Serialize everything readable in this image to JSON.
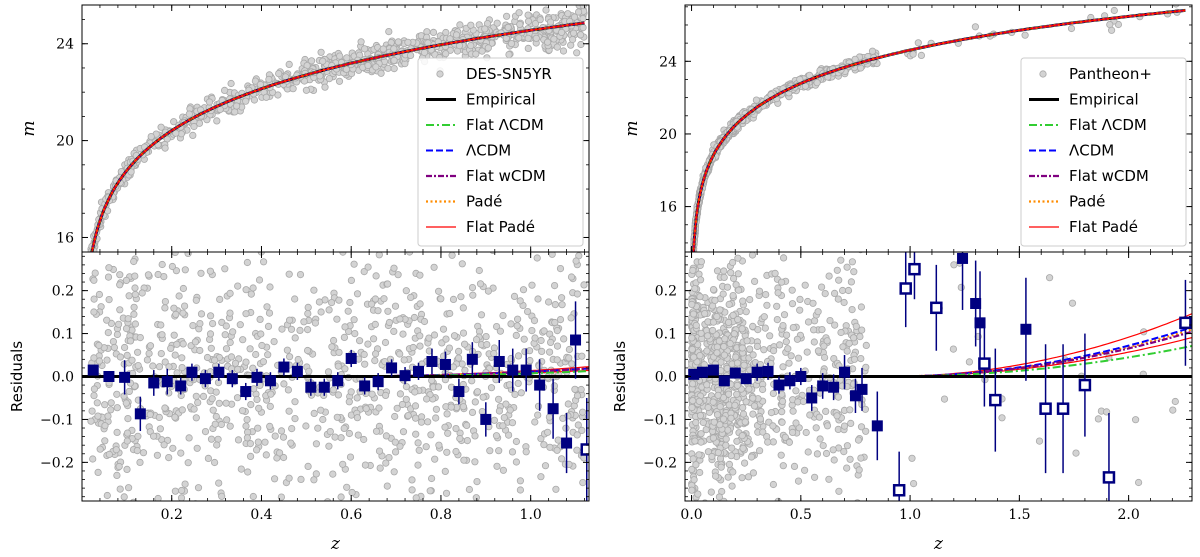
{
  "chart_data": [
    {
      "id": "des",
      "type": "scatter",
      "xlabel": "z",
      "top": {
        "ylabel": "m",
        "ylim": [
          15.4,
          25.6
        ],
        "yticks": [
          16,
          20,
          24
        ],
        "ytick_labels": [
          "16",
          "20",
          "24"
        ]
      },
      "bottom": {
        "ylabel": "Residuals",
        "ylim": [
          -0.29,
          0.29
        ],
        "yticks": [
          -0.2,
          -0.1,
          0.0,
          0.1,
          0.2
        ],
        "ytick_labels": [
          "−0.2",
          "−0.1",
          "0.0",
          "0.1",
          "0.2"
        ]
      },
      "xlim": [
        0.0,
        1.13
      ],
      "xticks": [
        0.2,
        0.4,
        0.6,
        0.8,
        1.0
      ],
      "xtick_labels": [
        "0.2",
        "0.4",
        "0.6",
        "0.8",
        "1.0"
      ],
      "legend": {
        "placement": "lower-right",
        "entries": [
          "DES-SN5YR",
          "Empirical",
          "Flat ΛCDM",
          "ΛCDM",
          "Flat wCDM",
          "Padé",
          "Flat Padé"
        ]
      },
      "binned_residuals": [
        {
          "z": 0.025,
          "r": 0.015,
          "err": 0.0
        },
        {
          "z": 0.06,
          "r": 0.0,
          "err": 0.0
        },
        {
          "z": 0.095,
          "r": -0.002,
          "err": 0.04
        },
        {
          "z": 0.13,
          "r": -0.087,
          "err": 0.04
        },
        {
          "z": 0.16,
          "r": -0.015,
          "err": 0.03
        },
        {
          "z": 0.19,
          "r": -0.012,
          "err": 0.03
        },
        {
          "z": 0.22,
          "r": -0.022,
          "err": 0.02
        },
        {
          "z": 0.245,
          "r": 0.01,
          "err": 0.02
        },
        {
          "z": 0.275,
          "r": -0.005,
          "err": 0.02
        },
        {
          "z": 0.305,
          "r": 0.01,
          "err": 0.02
        },
        {
          "z": 0.335,
          "r": -0.005,
          "err": 0.02
        },
        {
          "z": 0.365,
          "r": -0.035,
          "err": 0.02
        },
        {
          "z": 0.39,
          "r": -0.002,
          "err": 0.02
        },
        {
          "z": 0.42,
          "r": -0.01,
          "err": 0.02
        },
        {
          "z": 0.45,
          "r": 0.022,
          "err": 0.02
        },
        {
          "z": 0.48,
          "r": 0.012,
          "err": 0.02
        },
        {
          "z": 0.51,
          "r": -0.025,
          "err": 0.02
        },
        {
          "z": 0.54,
          "r": -0.025,
          "err": 0.02
        },
        {
          "z": 0.57,
          "r": -0.01,
          "err": 0.02
        },
        {
          "z": 0.6,
          "r": 0.042,
          "err": 0.02
        },
        {
          "z": 0.63,
          "r": -0.022,
          "err": 0.02
        },
        {
          "z": 0.66,
          "r": -0.012,
          "err": 0.02
        },
        {
          "z": 0.69,
          "r": 0.02,
          "err": 0.02
        },
        {
          "z": 0.72,
          "r": 0.002,
          "err": 0.02
        },
        {
          "z": 0.75,
          "r": 0.012,
          "err": 0.02
        },
        {
          "z": 0.78,
          "r": 0.035,
          "err": 0.03
        },
        {
          "z": 0.81,
          "r": 0.028,
          "err": 0.03
        },
        {
          "z": 0.84,
          "r": -0.035,
          "err": 0.03
        },
        {
          "z": 0.87,
          "r": 0.04,
          "err": 0.04
        },
        {
          "z": 0.9,
          "r": -0.1,
          "err": 0.04
        },
        {
          "z": 0.93,
          "r": 0.035,
          "err": 0.05
        },
        {
          "z": 0.96,
          "r": 0.015,
          "err": 0.05
        },
        {
          "z": 0.99,
          "r": 0.015,
          "err": 0.05
        },
        {
          "z": 1.02,
          "r": -0.02,
          "err": 0.06
        },
        {
          "z": 1.05,
          "r": -0.075,
          "err": 0.07
        },
        {
          "z": 1.08,
          "r": -0.155,
          "err": 0.07
        },
        {
          "z": 1.1,
          "r": 0.085,
          "err": 0.09
        },
        {
          "z": 1.125,
          "r": -0.17,
          "err": 0.12,
          "open": true
        }
      ],
      "models": {
        "end_offsets": {
          "flat_lcdm": 0.012,
          "lcdm": 0.018,
          "flat_wcdm": 0.018,
          "pade": 0.018,
          "flat_pade": 0.022
        },
        "start_z": 0.55
      }
    },
    {
      "id": "pantheon",
      "type": "scatter",
      "xlabel": "z",
      "top": {
        "ylabel": "m",
        "ylim": [
          13.5,
          27.1
        ],
        "yticks": [
          16,
          20,
          24
        ],
        "ytick_labels": [
          "16",
          "20",
          "24"
        ]
      },
      "bottom": {
        "ylabel": "Residuals",
        "ylim": [
          -0.29,
          0.29
        ],
        "yticks": [
          -0.2,
          -0.1,
          0.0,
          0.1,
          0.2
        ],
        "ytick_labels": [
          "−0.2",
          "−0.1",
          "0.0",
          "0.1",
          "0.2"
        ]
      },
      "xlim": [
        -0.03,
        2.29
      ],
      "xticks": [
        0.0,
        0.5,
        1.0,
        1.5,
        2.0
      ],
      "xtick_labels": [
        "0.0",
        "0.5",
        "1.0",
        "1.5",
        "2.0"
      ],
      "legend": {
        "placement": "lower-right",
        "entries": [
          "Pantheon+",
          "Empirical",
          "Flat ΛCDM",
          "ΛCDM",
          "Flat wCDM",
          "Padé",
          "Flat Padé"
        ]
      },
      "binned_residuals": [
        {
          "z": 0.01,
          "r": 0.005,
          "err": 0.01
        },
        {
          "z": 0.05,
          "r": 0.01,
          "err": 0.01
        },
        {
          "z": 0.1,
          "r": 0.015,
          "err": 0.01
        },
        {
          "z": 0.15,
          "r": -0.01,
          "err": 0.01
        },
        {
          "z": 0.2,
          "r": 0.008,
          "err": 0.01
        },
        {
          "z": 0.25,
          "r": -0.005,
          "err": 0.01
        },
        {
          "z": 0.3,
          "r": 0.01,
          "err": 0.02
        },
        {
          "z": 0.35,
          "r": 0.012,
          "err": 0.02
        },
        {
          "z": 0.4,
          "r": -0.02,
          "err": 0.02
        },
        {
          "z": 0.45,
          "r": -0.01,
          "err": 0.02
        },
        {
          "z": 0.5,
          "r": 0.0,
          "err": 0.02
        },
        {
          "z": 0.55,
          "r": -0.05,
          "err": 0.03
        },
        {
          "z": 0.6,
          "r": -0.022,
          "err": 0.03
        },
        {
          "z": 0.65,
          "r": -0.025,
          "err": 0.03
        },
        {
          "z": 0.7,
          "r": 0.01,
          "err": 0.04
        },
        {
          "z": 0.75,
          "r": -0.045,
          "err": 0.04
        },
        {
          "z": 0.78,
          "r": -0.03,
          "err": 0.05
        },
        {
          "z": 0.85,
          "r": -0.115,
          "err": 0.08
        },
        {
          "z": 0.95,
          "r": -0.265,
          "err": 0.09,
          "open": true
        },
        {
          "z": 0.98,
          "r": 0.205,
          "err": 0.09,
          "open": true
        },
        {
          "z": 1.02,
          "r": 0.25,
          "err": 0.07,
          "open": true
        },
        {
          "z": 1.12,
          "r": 0.16,
          "err": 0.1,
          "open": true
        },
        {
          "z": 1.24,
          "r": 0.275,
          "err": 0.12
        },
        {
          "z": 1.3,
          "r": 0.17,
          "err": 0.1
        },
        {
          "z": 1.32,
          "r": 0.125,
          "err": 0.12
        },
        {
          "z": 1.34,
          "r": 0.03,
          "err": 0.1,
          "open": true
        },
        {
          "z": 1.39,
          "r": -0.055,
          "err": 0.12,
          "open": true
        },
        {
          "z": 1.53,
          "r": 0.11,
          "err": 0.12
        },
        {
          "z": 1.62,
          "r": -0.075,
          "err": 0.15,
          "open": true
        },
        {
          "z": 1.7,
          "r": -0.075,
          "err": 0.15,
          "open": true
        },
        {
          "z": 1.8,
          "r": -0.02,
          "err": 0.12,
          "open": true
        },
        {
          "z": 1.91,
          "r": -0.235,
          "err": 0.15,
          "open": true
        },
        {
          "z": 2.26,
          "r": 0.125,
          "err": 0.1,
          "open": true
        }
      ],
      "models": {
        "end_offsets": {
          "flat_lcdm": 0.068,
          "lcdm": 0.11,
          "flat_wcdm": 0.1,
          "pade": 0.105,
          "flat_pade": 0.14
        },
        "start_z": 0.9
      }
    }
  ],
  "colors": {
    "data_fill": "#d3d3d3",
    "data_edge": "#a9a9a9",
    "binned": "#000080",
    "empirical": "#000000",
    "flat_lcdm": "#32cd32",
    "lcdm": "#0000ff",
    "flat_wcdm": "#800080",
    "pade": "#ff8c00",
    "flat_pade": "#ff0000"
  }
}
